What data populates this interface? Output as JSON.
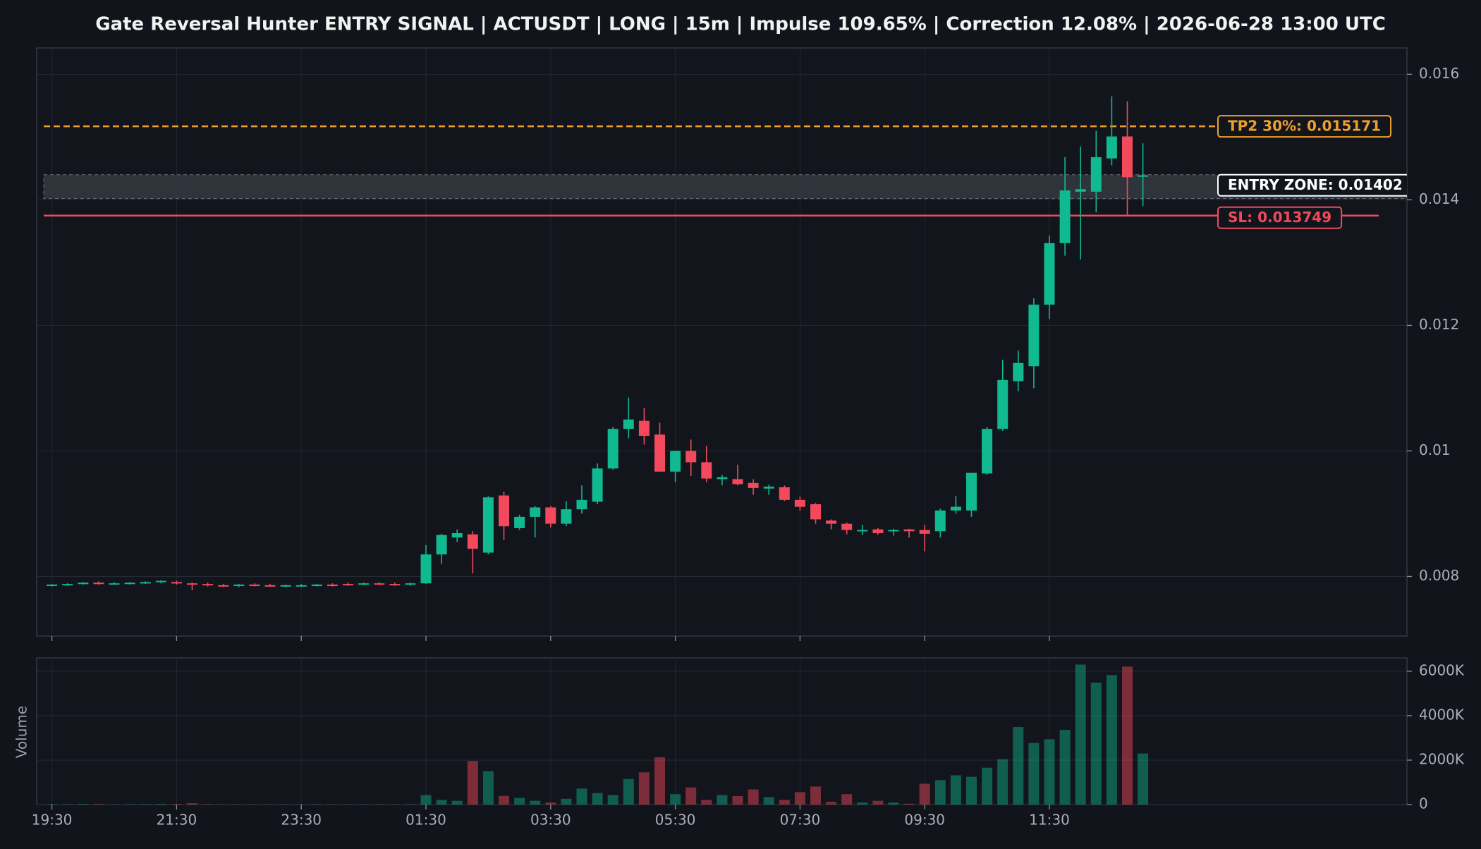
{
  "chart_data": {
    "type": "candlestick",
    "title": "Gate Reversal Hunter ENTRY SIGNAL | ACTUSDT | LONG | 15m | Impulse 109.65% | Correction 12.08% | 2026-06-28 13:00 UTC",
    "categories": [
      "19:30",
      null,
      null,
      null,
      null,
      null,
      null,
      null,
      "21:30",
      null,
      null,
      null,
      null,
      null,
      null,
      null,
      "23:30",
      null,
      null,
      null,
      null,
      null,
      null,
      null,
      "01:30",
      null,
      null,
      null,
      null,
      null,
      null,
      null,
      "03:30",
      null,
      null,
      null,
      null,
      null,
      null,
      null,
      "05:30",
      null,
      null,
      null,
      null,
      null,
      null,
      null,
      "07:30",
      null,
      null,
      null,
      null,
      null,
      null,
      null,
      "09:30",
      null,
      null,
      null,
      null,
      null,
      null,
      null,
      "11:30",
      null,
      null,
      null,
      null,
      null,
      null
    ],
    "open": [
      0.00786,
      0.00787,
      0.00789,
      0.0079,
      0.00789,
      0.00789,
      0.0079,
      0.00791,
      0.00791,
      0.00789,
      0.00788,
      0.00786,
      0.00785,
      0.00787,
      0.00786,
      0.00785,
      0.00786,
      0.00786,
      0.00787,
      0.00788,
      0.00788,
      0.00789,
      0.00788,
      0.00787,
      0.00789,
      0.00835,
      0.00862,
      0.00867,
      0.00838,
      0.00929,
      0.00877,
      0.00895,
      0.0091,
      0.00884,
      0.00907,
      0.00919,
      0.00972,
      0.01035,
      0.01048,
      0.01026,
      0.00967,
      0.01,
      0.00982,
      0.00955,
      0.00955,
      0.00949,
      0.0094,
      0.00942,
      0.00922,
      0.00915,
      0.00889,
      0.00884,
      0.00872,
      0.00875,
      0.00873,
      0.00875,
      0.00874,
      0.00872,
      0.00905,
      0.00905,
      0.00964,
      0.01035,
      0.01111,
      0.01135,
      0.01233,
      0.01331,
      0.01413,
      0.01413,
      0.01466,
      0.01501,
      0.01437
    ],
    "high": [
      0.00788,
      0.00789,
      0.00791,
      0.00792,
      0.00791,
      0.00791,
      0.00792,
      0.00794,
      0.00793,
      0.0079,
      0.0079,
      0.00788,
      0.00788,
      0.00789,
      0.00788,
      0.00787,
      0.00788,
      0.00788,
      0.00789,
      0.0079,
      0.0079,
      0.00791,
      0.0079,
      0.0079,
      0.0085,
      0.00868,
      0.00875,
      0.00872,
      0.00928,
      0.00935,
      0.00898,
      0.00912,
      0.00912,
      0.0092,
      0.00945,
      0.0098,
      0.01038,
      0.01085,
      0.01068,
      0.01045,
      0.01,
      0.01018,
      0.01008,
      0.00962,
      0.00978,
      0.00955,
      0.00946,
      0.00945,
      0.00927,
      0.00917,
      0.00891,
      0.00886,
      0.00882,
      0.00877,
      0.00876,
      0.00876,
      0.00882,
      0.00908,
      0.00928,
      0.00965,
      0.01038,
      0.01145,
      0.0116,
      0.01243,
      0.01343,
      0.01468,
      0.01485,
      0.0151,
      0.01565,
      0.01557,
      0.0149
    ],
    "low": [
      0.00784,
      0.00785,
      0.00787,
      0.00787,
      0.00787,
      0.00787,
      0.00788,
      0.00789,
      0.00787,
      0.00778,
      0.00784,
      0.00783,
      0.00783,
      0.00784,
      0.00783,
      0.00783,
      0.00784,
      0.00784,
      0.00784,
      0.00785,
      0.00786,
      0.00786,
      0.00785,
      0.00785,
      0.00788,
      0.0082,
      0.00855,
      0.00805,
      0.00835,
      0.00858,
      0.00874,
      0.00862,
      0.00878,
      0.0088,
      0.009,
      0.00915,
      0.0097,
      0.0102,
      0.0101,
      0.00967,
      0.0095,
      0.0096,
      0.0095,
      0.00945,
      0.00945,
      0.0093,
      0.0093,
      0.0092,
      0.00905,
      0.00884,
      0.00875,
      0.00867,
      0.00866,
      0.00866,
      0.00865,
      0.00862,
      0.0084,
      0.00862,
      0.009,
      0.00895,
      0.00962,
      0.01032,
      0.01095,
      0.011,
      0.0121,
      0.01311,
      0.01305,
      0.0138,
      0.01455,
      0.01375,
      0.0139
    ],
    "close": [
      0.00787,
      0.00788,
      0.0079,
      0.00789,
      0.00789,
      0.0079,
      0.00791,
      0.00793,
      0.00789,
      0.00787,
      0.00786,
      0.00785,
      0.00787,
      0.00786,
      0.00785,
      0.00786,
      0.00786,
      0.00787,
      0.00786,
      0.00787,
      0.00789,
      0.00788,
      0.00787,
      0.00789,
      0.00835,
      0.00866,
      0.00869,
      0.00844,
      0.00926,
      0.0088,
      0.00895,
      0.0091,
      0.00884,
      0.00907,
      0.00922,
      0.00972,
      0.01035,
      0.0105,
      0.01024,
      0.00967,
      0.01,
      0.00982,
      0.00956,
      0.00958,
      0.00947,
      0.00941,
      0.00943,
      0.00922,
      0.00911,
      0.00891,
      0.00884,
      0.00874,
      0.00874,
      0.00869,
      0.00874,
      0.00872,
      0.00868,
      0.00905,
      0.00911,
      0.00965,
      0.01035,
      0.01113,
      0.0114,
      0.01233,
      0.01331,
      0.01415,
      0.01417,
      0.01468,
      0.01501,
      0.01436,
      0.01439
    ],
    "up_color": "#10b98f",
    "down_color": "#f2495c",
    "ylim": [
      0.00705,
      0.01642
    ],
    "yticks": [
      0.008,
      0.01,
      0.012,
      0.014,
      0.016
    ],
    "grid": true,
    "levels": [
      {
        "name": "TP2 30%: 0.015171",
        "value": 0.015171,
        "color": "#f0a02a",
        "style": "dashed"
      },
      {
        "name": "SL: 0.013749",
        "value": 0.013749,
        "color": "#f2495c",
        "style": "solid"
      }
    ],
    "entry_zone": {
      "name": "ENTRY ZONE: 0.01402",
      "low": 0.01402,
      "high": 0.0144,
      "color": "#ffffff"
    },
    "volume": {
      "ylabel": "Volume",
      "values": [
        20,
        15,
        30,
        25,
        10,
        15,
        20,
        30,
        25,
        60,
        15,
        10,
        12,
        10,
        8,
        10,
        12,
        15,
        10,
        8,
        10,
        12,
        10,
        15,
        430,
        210,
        170,
        1960,
        1500,
        390,
        300,
        170,
        90,
        260,
        720,
        520,
        430,
        1150,
        1450,
        2130,
        470,
        770,
        210,
        430,
        380,
        680,
        340,
        210,
        560,
        810,
        130,
        470,
        90,
        170,
        90,
        40,
        940,
        1100,
        1320,
        1250,
        1660,
        2040,
        3490,
        2770,
        2940,
        3360,
        6300,
        5490,
        5830,
        6210,
        2300
      ],
      "ylim": [
        0,
        6600
      ],
      "yticks": [
        0,
        {
          "value": 2000,
          "label": "2000K"
        },
        {
          "value": 4000,
          "label": "4000K"
        },
        {
          "value": 6000,
          "label": "6000K"
        }
      ]
    }
  }
}
